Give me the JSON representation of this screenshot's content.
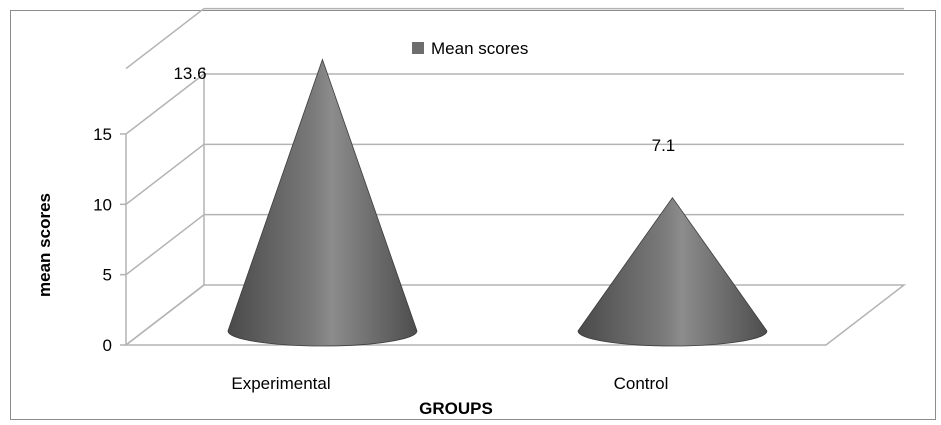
{
  "chart_data": {
    "type": "bar",
    "shape": "3d-cone",
    "title": "",
    "xlabel": "GROUPS",
    "ylabel": "mean scores",
    "categories": [
      "Experimental",
      "Control"
    ],
    "series": [
      {
        "name": "Mean scores",
        "values": [
          13.6,
          7.1
        ],
        "data_labels": [
          "13.6",
          "7.1"
        ]
      }
    ],
    "ylim": [
      0,
      15
    ],
    "yticks": [
      0,
      5,
      10,
      15
    ],
    "grid": true,
    "legend": "top-center",
    "colors": {
      "series": "#6e6e6e",
      "grid": "#b3b3b3",
      "frame": "#8c8c8c"
    }
  }
}
